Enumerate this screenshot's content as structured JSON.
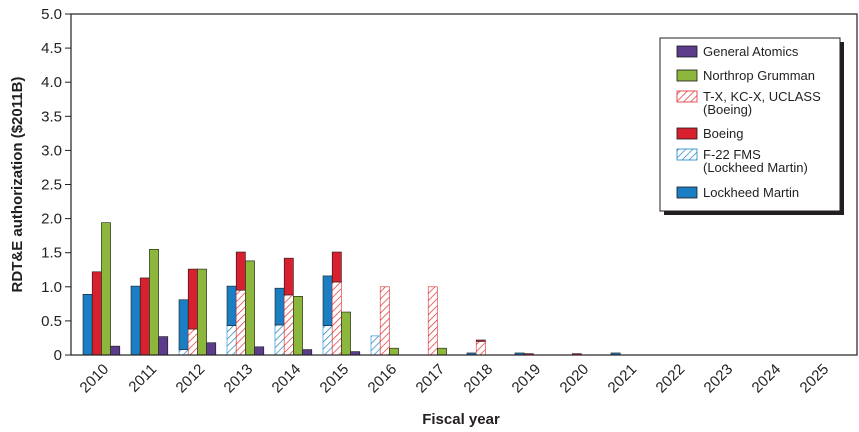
{
  "chart_data": {
    "type": "bar",
    "xlabel": "Fiscal year",
    "ylabel": "RDT&E authorization ($2011B)",
    "ylim": [
      0,
      5.0
    ],
    "yticks": [
      "0",
      "0.5",
      "1.0",
      "1.5",
      "2.0",
      "2.5",
      "3.0",
      "3.5",
      "4.0",
      "4.5",
      "5.0"
    ],
    "grid": false,
    "legend_position": "top-right",
    "categories": [
      "2010",
      "2011",
      "2012",
      "2013",
      "2014",
      "2015",
      "2016",
      "2017",
      "2018",
      "2019",
      "2020",
      "2021",
      "2022",
      "2023",
      "2024",
      "2025"
    ],
    "series": [
      {
        "name": "General Atomics",
        "key": "ga",
        "color": "#5b3b8a",
        "stack": 3,
        "pattern": "solid",
        "values": [
          0.13,
          0.27,
          0.18,
          0.12,
          0.08,
          0.05,
          0,
          0,
          0,
          0,
          0,
          0,
          0,
          0,
          0,
          0
        ]
      },
      {
        "name": "Northrop Grumman",
        "key": "ng",
        "color": "#8cb63c",
        "stack": 2,
        "pattern": "solid",
        "values": [
          1.94,
          1.55,
          1.26,
          1.38,
          0.86,
          0.63,
          0.1,
          0.1,
          0,
          0,
          0,
          0,
          0,
          0,
          0,
          0
        ]
      },
      {
        "name": "T-X, KC-X, UCLASS (Boeing)",
        "key": "tx",
        "color": "#e0282e",
        "stack": 1,
        "pattern": "hatch",
        "values": [
          0,
          0,
          0.38,
          0.95,
          0.88,
          1.07,
          1.0,
          1.0,
          0.2,
          0,
          0,
          0,
          0,
          0,
          0,
          0
        ]
      },
      {
        "name": "Boeing",
        "key": "boeing",
        "color": "#d8202e",
        "stack": 1,
        "pattern": "solid",
        "values": [
          1.22,
          1.13,
          0.88,
          0.56,
          0.54,
          0.44,
          0,
          0,
          0.02,
          0.02,
          0.02,
          0,
          0,
          0,
          0,
          0
        ]
      },
      {
        "name": "F-22 FMS (Lockheed Martin)",
        "key": "fms",
        "color": "#1a84c7",
        "stack": 0,
        "pattern": "hatch",
        "values": [
          0,
          0,
          0.08,
          0.43,
          0.44,
          0.43,
          0.28,
          0,
          0,
          0,
          0,
          0,
          0,
          0,
          0,
          0
        ]
      },
      {
        "name": "Lockheed Martin",
        "key": "lm",
        "color": "#1b7ec2",
        "stack": 0,
        "pattern": "solid",
        "values": [
          0.89,
          1.01,
          0.73,
          0.58,
          0.54,
          0.73,
          0,
          0,
          0.03,
          0.03,
          0,
          0.03,
          0,
          0,
          0,
          0
        ]
      }
    ],
    "legend": [
      {
        "label_lines": [
          "General Atomics"
        ],
        "series": "ga"
      },
      {
        "label_lines": [
          "Northrop Grumman"
        ],
        "series": "ng"
      },
      {
        "label_lines": [
          "T-X, KC-X, UCLASS",
          "(Boeing)"
        ],
        "series": "tx"
      },
      {
        "label_lines": [
          "Boeing"
        ],
        "series": "boeing"
      },
      {
        "label_lines": [
          "F-22 FMS",
          "(Lockheed Martin)"
        ],
        "series": "fms"
      },
      {
        "label_lines": [
          "Lockheed Martin"
        ],
        "series": "lm"
      }
    ]
  }
}
